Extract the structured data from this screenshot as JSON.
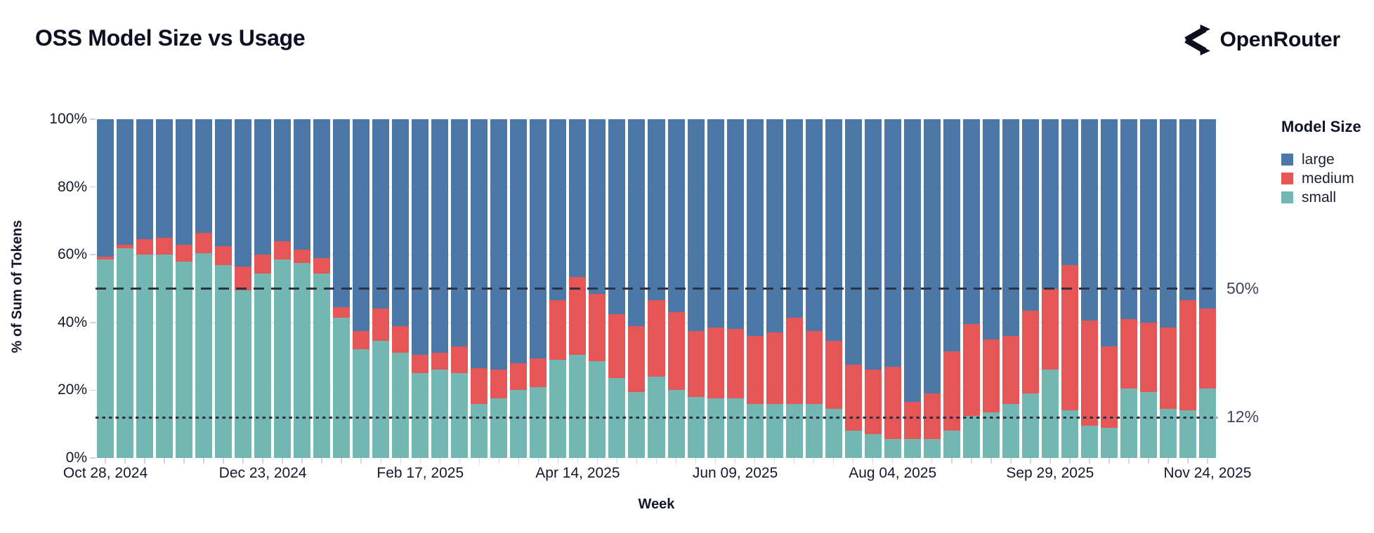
{
  "header": {
    "title": "OSS Model Size vs Usage",
    "brand": "OpenRouter"
  },
  "chart_data": {
    "type": "bar",
    "stacked": true,
    "title": "OSS Model Size vs Usage",
    "xlabel": "Week",
    "ylabel": "% of Sum of Tokens",
    "ylim": [
      0,
      100
    ],
    "grid": true,
    "y_axis": {
      "tick_values": [
        0,
        20,
        40,
        60,
        80,
        100
      ],
      "tick_labels": [
        "0%",
        "20%",
        "40%",
        "60%",
        "80%",
        "100%"
      ]
    },
    "x_axis": {
      "tick_week_indices": [
        0,
        8,
        16,
        24,
        32,
        40,
        48,
        56
      ],
      "tick_labels": [
        "Oct 28, 2024",
        "Dec 23, 2024",
        "Feb 17, 2025",
        "Apr 14, 2025",
        "Jun 09, 2025",
        "Aug 04, 2025",
        "Sep 29, 2025",
        "Nov 24, 2025"
      ]
    },
    "legend": {
      "title": "Model Size",
      "position": "right",
      "entries": [
        {
          "label": "large",
          "color": "#4c78a8"
        },
        {
          "label": "medium",
          "color": "#e45756"
        },
        {
          "label": "small",
          "color": "#72b7b2"
        }
      ]
    },
    "annotations": [
      {
        "value": 50,
        "label": "50%",
        "style": "dashed",
        "color": "#2e3243"
      },
      {
        "value": 12,
        "label": "12%",
        "style": "dotted",
        "color": "#2e3243"
      }
    ],
    "x": [
      "Oct 28, 2024",
      "Nov 04, 2024",
      "Nov 11, 2024",
      "Nov 18, 2024",
      "Nov 25, 2024",
      "Dec 02, 2024",
      "Dec 09, 2024",
      "Dec 16, 2024",
      "Dec 23, 2024",
      "Dec 30, 2024",
      "Jan 06, 2025",
      "Jan 13, 2025",
      "Jan 20, 2025",
      "Jan 27, 2025",
      "Feb 03, 2025",
      "Feb 10, 2025",
      "Feb 17, 2025",
      "Feb 24, 2025",
      "Mar 03, 2025",
      "Mar 10, 2025",
      "Mar 17, 2025",
      "Mar 24, 2025",
      "Mar 31, 2025",
      "Apr 07, 2025",
      "Apr 14, 2025",
      "Apr 21, 2025",
      "Apr 28, 2025",
      "May 05, 2025",
      "May 12, 2025",
      "May 19, 2025",
      "May 26, 2025",
      "Jun 02, 2025",
      "Jun 09, 2025",
      "Jun 16, 2025",
      "Jun 23, 2025",
      "Jun 30, 2025",
      "Jul 07, 2025",
      "Jul 14, 2025",
      "Jul 21, 2025",
      "Jul 28, 2025",
      "Aug 04, 2025",
      "Aug 11, 2025",
      "Aug 18, 2025",
      "Aug 25, 2025",
      "Sep 01, 2025",
      "Sep 08, 2025",
      "Sep 15, 2025",
      "Sep 22, 2025",
      "Sep 29, 2025",
      "Oct 06, 2025",
      "Oct 13, 2025",
      "Oct 20, 2025",
      "Oct 27, 2025",
      "Nov 03, 2025",
      "Nov 10, 2025",
      "Nov 17, 2025",
      "Nov 24, 2025"
    ],
    "series": [
      {
        "name": "small",
        "color": "#72b7b2",
        "values": [
          58.5,
          62,
          60,
          60,
          58,
          60.5,
          57,
          49.5,
          54.5,
          58.5,
          57.5,
          54.5,
          41.5,
          32,
          34.5,
          31,
          25,
          26,
          25,
          16,
          17.5,
          20,
          21,
          29,
          30.5,
          28.5,
          23.5,
          19.5,
          24,
          20,
          18,
          17.5,
          17.5,
          16,
          16,
          16,
          16,
          14.5,
          8,
          7,
          5.5,
          5.5,
          5.5,
          8,
          12.5,
          13.5,
          16,
          19,
          26,
          14,
          9.5,
          9,
          20.5,
          19.5,
          14.5,
          14,
          20.5
        ]
      },
      {
        "name": "medium",
        "color": "#e45756",
        "values": [
          1,
          1,
          4.5,
          5,
          5,
          6,
          5.5,
          7,
          5.5,
          5.5,
          4,
          4.5,
          3,
          5.5,
          9.5,
          8,
          5.5,
          5,
          8,
          10.5,
          8.5,
          8,
          8.5,
          17.5,
          23,
          20,
          19,
          19.5,
          22.5,
          23,
          19.5,
          21,
          20.5,
          20,
          21,
          25.5,
          21.5,
          20,
          19.5,
          19,
          21.5,
          11,
          13.5,
          23.5,
          27,
          21.5,
          20,
          24.5,
          24,
          43,
          31,
          24,
          20.5,
          20.5,
          24,
          32.5,
          23.5
        ]
      },
      {
        "name": "large",
        "color": "#4c78a8",
        "values": [
          40.5,
          37,
          35.5,
          35,
          37,
          33.5,
          37.5,
          43.5,
          40,
          36,
          38.5,
          41,
          55.5,
          62.5,
          56,
          61,
          69.5,
          69,
          67,
          73.5,
          74,
          72,
          70.5,
          53.5,
          46.5,
          51.5,
          57.5,
          61,
          53.5,
          57,
          62.5,
          61.5,
          62,
          64,
          63,
          58.5,
          62.5,
          65.5,
          72.5,
          74,
          73,
          83.5,
          81,
          68.5,
          60.5,
          65,
          64,
          56.5,
          50,
          43,
          59.5,
          67,
          59,
          60,
          61.5,
          53.5,
          56
        ]
      }
    ]
  }
}
